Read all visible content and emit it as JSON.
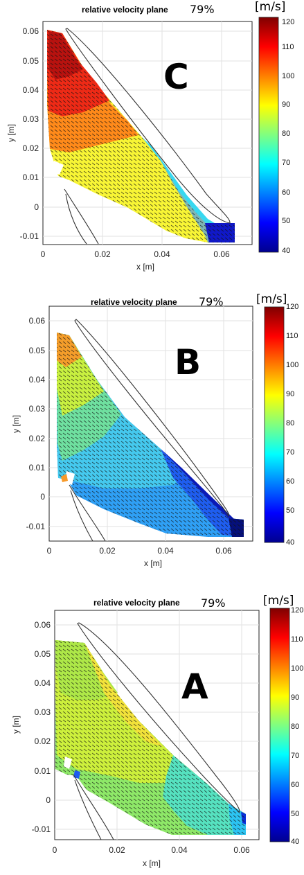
{
  "panels": [
    {
      "letter": "C",
      "title": "relative velocity plane",
      "percent": "79%",
      "unit": "[m/s]",
      "xlabel": "x [m]",
      "ylabel": "y [m]",
      "x_ticks": [
        "0",
        "0.02",
        "0.04",
        "0.06"
      ],
      "y_ticks": [
        "0.06",
        "0.05",
        "0.04",
        "0.03",
        "0.02",
        "0.01",
        "0",
        "-0.01"
      ],
      "cbar_ticks": [
        "120",
        "110",
        "100",
        "90",
        "80",
        "70",
        "60",
        "50",
        "40"
      ]
    },
    {
      "letter": "B",
      "title": "relative velocity plane",
      "percent": "79%",
      "unit": "[m/s]",
      "xlabel": "x [m]",
      "ylabel": "y [m]",
      "x_ticks": [
        "0",
        "0.02",
        "0.04",
        "0.06"
      ],
      "y_ticks": [
        "0.06",
        "0.05",
        "0.04",
        "0.03",
        "0.02",
        "0.01",
        "0",
        "-0.01"
      ],
      "cbar_ticks": [
        "120",
        "110",
        "100",
        "90",
        "80",
        "70",
        "60",
        "50",
        "40"
      ]
    },
    {
      "letter": "A",
      "title": "relative velocity plane",
      "percent": "79%",
      "unit": "[m/s]",
      "xlabel": "x [m]",
      "ylabel": "y [m]",
      "x_ticks": [
        "0",
        "0.02",
        "0.04",
        "0.06"
      ],
      "y_ticks": [
        "0.06",
        "0.05",
        "0.04",
        "0.03",
        "0.02",
        "0.01",
        "0",
        "-0.01"
      ],
      "cbar_ticks": [
        "120",
        "110",
        "100",
        "90",
        "80",
        "70",
        "60",
        "50",
        "40"
      ]
    }
  ],
  "chart_data": [
    {
      "type": "heatmap",
      "title": "relative velocity plane",
      "xlabel": "x [m]",
      "ylabel": "y [m]",
      "xlim": [
        0,
        0.07
      ],
      "ylim": [
        -0.015,
        0.065
      ],
      "clim": [
        40,
        120
      ],
      "colormap": "jet",
      "grid": true,
      "colorbar": "right",
      "field": {
        "region": [
          [
            0.002,
            0.06
          ],
          [
            0.01,
            0.058
          ],
          [
            0.04,
            0.015
          ],
          [
            0.055,
            -0.006
          ],
          [
            0.065,
            -0.006
          ],
          [
            0.065,
            -0.012
          ],
          [
            0.022,
            -0.012
          ],
          [
            0.002,
            0.006
          ]
        ],
        "value_top": 115,
        "value_bottom": 88,
        "value_near_blade": 48
      }
    },
    {
      "type": "heatmap",
      "title": "relative velocity plane",
      "xlabel": "x [m]",
      "ylabel": "y [m]",
      "xlim": [
        0,
        0.07
      ],
      "ylim": [
        -0.015,
        0.065
      ],
      "clim": [
        40,
        120
      ],
      "colormap": "jet",
      "grid": true,
      "colorbar": "right",
      "field": {
        "region": [
          [
            0.003,
            0.055
          ],
          [
            0.008,
            0.053
          ],
          [
            0.035,
            0.018
          ],
          [
            0.058,
            -0.006
          ],
          [
            0.066,
            -0.008
          ],
          [
            0.066,
            -0.013
          ],
          [
            0.022,
            -0.013
          ],
          [
            0.003,
            0.006
          ]
        ],
        "value_top": 100,
        "value_bottom": 72,
        "value_near_blade": 50
      }
    },
    {
      "type": "heatmap",
      "title": "relative velocity plane",
      "xlabel": "x [m]",
      "ylabel": "y [m]",
      "xlim": [
        0,
        0.065
      ],
      "ylim": [
        -0.015,
        0.065
      ],
      "clim": [
        40,
        120
      ],
      "colormap": "jet",
      "grid": true,
      "colorbar": "right",
      "field": {
        "region": [
          [
            0.0,
            0.055
          ],
          [
            0.01,
            0.054
          ],
          [
            0.035,
            0.022
          ],
          [
            0.058,
            -0.004
          ],
          [
            0.061,
            -0.008
          ],
          [
            0.061,
            -0.012
          ],
          [
            0.025,
            -0.012
          ],
          [
            0.0,
            0.006
          ]
        ],
        "value_top": 85,
        "value_bottom": 74,
        "value_near_blade": 60
      }
    }
  ]
}
